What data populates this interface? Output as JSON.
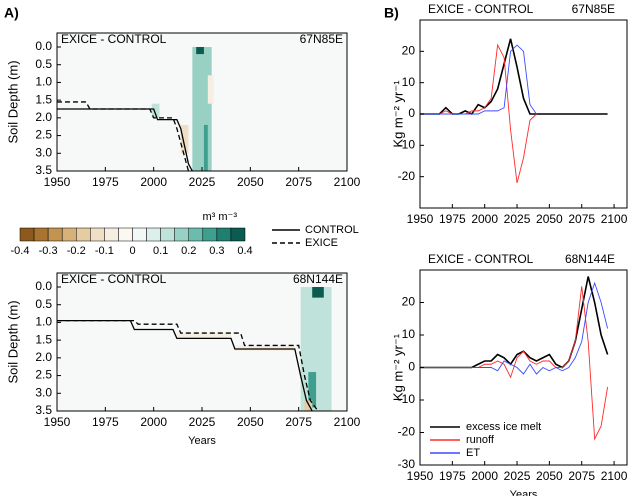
{
  "panel_labels": [
    "A)",
    "B)"
  ],
  "colorbar": {
    "unit": "m³ m⁻³",
    "lim": [
      -0.4,
      0.4
    ],
    "ticks": [
      -0.4,
      -0.3,
      -0.2,
      -0.1,
      0,
      0.1,
      0.2,
      0.3,
      0.4
    ],
    "colors": [
      "#8c5a1e",
      "#a8742f",
      "#c39451",
      "#d6b27a",
      "#e5cca2",
      "#efdfc4",
      "#f6eee0",
      "#fbf8f2",
      "#f1f8f6",
      "#ddefea",
      "#bfe3da",
      "#98d1c4",
      "#6bbcac",
      "#3f9f8f",
      "#1f7f71",
      "#0c5b51"
    ]
  },
  "chart_data": [
    {
      "type": "heatmap",
      "title": "EXICE - CONTROL",
      "location": "67N85E",
      "ylabel": "Soil Depth (m)",
      "y_reversed": true,
      "legend": "outside right",
      "xlim": [
        1950,
        2100
      ],
      "xticks": [
        1950,
        1975,
        2000,
        2025,
        2050,
        2075,
        2100
      ],
      "ylim": [
        0,
        3.5
      ],
      "yticks": [
        {
          "value": 0,
          "label": "0.0"
        },
        0.5,
        {
          "value": 1,
          "label": "1.0"
        },
        1.5,
        {
          "value": 2,
          "label": "2.0"
        },
        2.5,
        {
          "value": 3,
          "label": "3.0"
        },
        3.5
      ],
      "cells": [
        {
          "x": [
            2020,
            2030
          ],
          "y": [
            0,
            3.5
          ],
          "value": 0.15
        },
        {
          "x": [
            2022,
            2026
          ],
          "y": [
            0,
            0.2
          ],
          "value": 0.4
        },
        {
          "x": [
            2026,
            2028
          ],
          "y": [
            2.2,
            3.5
          ],
          "value": 0.25
        },
        {
          "x": [
            1999,
            2003
          ],
          "y": [
            1.6,
            2.0
          ],
          "value": 0.1
        },
        {
          "x": [
            2014,
            2018
          ],
          "y": [
            2.2,
            3.0
          ],
          "value": -0.15
        },
        {
          "x": [
            2028,
            2031
          ],
          "y": [
            0.8,
            1.6
          ],
          "value": -0.1
        }
      ],
      "series": [
        {
          "name": "CONTROL",
          "color": "#000000",
          "dashed": false,
          "x": [
            1950,
            2000,
            2002,
            2012,
            2014,
            2016,
            2018,
            2020
          ],
          "values": [
            1.75,
            1.75,
            2.05,
            2.05,
            2.3,
            2.8,
            3.3,
            3.5
          ]
        },
        {
          "name": "EXICE",
          "color": "#000000",
          "dashed": true,
          "x": [
            1950,
            1965,
            1967,
            1998,
            2000,
            2010,
            2012,
            2015,
            2018
          ],
          "values": [
            1.55,
            1.55,
            1.75,
            1.75,
            2.0,
            2.0,
            2.3,
            2.9,
            3.5
          ]
        }
      ]
    },
    {
      "type": "heatmap",
      "title": "EXICE - CONTROL",
      "location": "68N144E",
      "ylabel": "Soil Depth (m)",
      "xlabel": "Years",
      "y_reversed": true,
      "xlim": [
        1950,
        2100
      ],
      "xticks": [
        1950,
        1975,
        2000,
        2025,
        2050,
        2075,
        2100
      ],
      "ylim": [
        0,
        3.5
      ],
      "yticks": [
        {
          "value": 0,
          "label": "0.0"
        },
        0.5,
        {
          "value": 1,
          "label": "1.0"
        },
        1.5,
        {
          "value": 2,
          "label": "2.0"
        },
        2.5,
        {
          "value": 3,
          "label": "3.0"
        },
        3.5
      ],
      "cells": [
        {
          "x": [
            2076,
            2092
          ],
          "y": [
            0,
            3.5
          ],
          "value": 0.1
        },
        {
          "x": [
            2082,
            2088
          ],
          "y": [
            0,
            0.3
          ],
          "value": 0.35
        },
        {
          "x": [
            2080,
            2084
          ],
          "y": [
            2.4,
            3.4
          ],
          "value": 0.25
        },
        {
          "x": [
            2012,
            2040
          ],
          "y": [
            1.3,
            1.45
          ],
          "value": -0.1
        },
        {
          "x": [
            2042,
            2073
          ],
          "y": [
            1.65,
            1.8
          ],
          "value": -0.1
        },
        {
          "x": [
            2078,
            2082
          ],
          "y": [
            3.2,
            3.5
          ],
          "value": -0.2
        }
      ],
      "series": [
        {
          "color": "#000000",
          "dashed": false,
          "x": [
            1950,
            1988,
            1990,
            2010,
            2012,
            2040,
            2042,
            2073,
            2076,
            2079,
            2082
          ],
          "values": [
            0.95,
            0.95,
            1.2,
            1.2,
            1.45,
            1.45,
            1.75,
            1.75,
            2.5,
            3.2,
            3.5
          ]
        },
        {
          "color": "#000000",
          "dashed": true,
          "x": [
            1950,
            1990,
            1992,
            2012,
            2014,
            2045,
            2047,
            2075,
            2078,
            2081,
            2085
          ],
          "values": [
            0.95,
            0.95,
            1.05,
            1.05,
            1.3,
            1.3,
            1.65,
            1.65,
            2.5,
            3.2,
            3.5
          ]
        }
      ]
    },
    {
      "type": "line",
      "title": "EXICE - CONTROL",
      "location": "67N85E",
      "ylabel": "Kg m⁻² yr⁻¹",
      "xlim": [
        1950,
        2110
      ],
      "xticks": [
        1950,
        1975,
        2000,
        2025,
        2050,
        2075,
        2100
      ],
      "ylim": [
        -30,
        30
      ],
      "yticks": [
        -20,
        -10,
        0,
        10,
        20
      ],
      "x": [
        1950,
        1955,
        1960,
        1965,
        1970,
        1975,
        1980,
        1985,
        1990,
        1995,
        2000,
        2005,
        2010,
        2015,
        2020,
        2025,
        2030,
        2035,
        2040,
        2045,
        2050,
        2055,
        2060,
        2065,
        2070,
        2075,
        2080,
        2085,
        2090,
        2095
      ],
      "series": [
        {
          "color": "#000000",
          "values": [
            0,
            0,
            0,
            0,
            2,
            0,
            0,
            1,
            0,
            3,
            2,
            4,
            8,
            16,
            24,
            15,
            5,
            0,
            0,
            0,
            0,
            0,
            0,
            0,
            0,
            0,
            0,
            0,
            0,
            0
          ]
        },
        {
          "color": "#ff2a2a",
          "values": [
            0,
            0,
            0,
            0,
            1,
            0,
            0,
            0,
            1,
            1,
            2,
            5,
            22,
            18,
            -5,
            -22,
            -14,
            -2,
            0,
            null,
            null,
            null,
            null,
            null,
            null,
            null,
            null,
            null,
            null,
            null
          ]
        },
        {
          "color": "#3a4bff",
          "values": [
            0,
            0,
            0,
            0,
            0,
            0,
            0,
            0,
            0,
            0,
            1,
            1,
            1,
            2,
            20,
            22,
            20,
            3,
            0,
            null,
            null,
            null,
            null,
            null,
            null,
            null,
            null,
            null,
            null,
            null
          ]
        }
      ]
    },
    {
      "type": "line",
      "title": "EXICE - CONTROL",
      "location": "68N144E",
      "ylabel": "Kg m⁻² yr⁻¹",
      "xlabel": "Years",
      "legend": "lower left",
      "xlim": [
        1950,
        2110
      ],
      "xticks": [
        1950,
        1975,
        2000,
        2025,
        2050,
        2075,
        2100
      ],
      "ylim": [
        -30,
        30
      ],
      "yticks": [
        -30,
        -20,
        -10,
        0,
        10,
        20
      ],
      "x": [
        1950,
        1955,
        1960,
        1965,
        1970,
        1975,
        1980,
        1985,
        1990,
        1995,
        2000,
        2005,
        2010,
        2015,
        2020,
        2025,
        2030,
        2035,
        2040,
        2045,
        2050,
        2055,
        2060,
        2065,
        2070,
        2075,
        2080,
        2085,
        2090,
        2095
      ],
      "series": [
        {
          "name": "excess ice melt",
          "color": "#000000",
          "values": [
            0,
            0,
            0,
            0,
            0,
            0,
            0,
            0,
            0,
            1,
            2,
            2,
            4,
            3,
            1,
            4,
            5,
            3,
            2,
            3,
            4,
            1,
            0,
            2,
            8,
            18,
            28,
            20,
            10,
            4
          ]
        },
        {
          "name": "runoff",
          "color": "#ff2a2a",
          "values": [
            0,
            0,
            0,
            0,
            0,
            0,
            0,
            0,
            0,
            0,
            1,
            1,
            2,
            1,
            -3,
            3,
            5,
            2,
            1,
            2,
            2,
            0,
            0,
            2,
            8,
            25,
            8,
            -22,
            -18,
            -6
          ]
        },
        {
          "name": "ET",
          "color": "#3a4bff",
          "values": [
            0,
            0,
            0,
            0,
            0,
            0,
            0,
            0,
            0,
            0,
            0,
            0,
            -1,
            2,
            1,
            0,
            -2,
            1,
            -2,
            0,
            -1,
            0,
            -1,
            0,
            3,
            8,
            20,
            26,
            20,
            12
          ]
        }
      ]
    }
  ]
}
